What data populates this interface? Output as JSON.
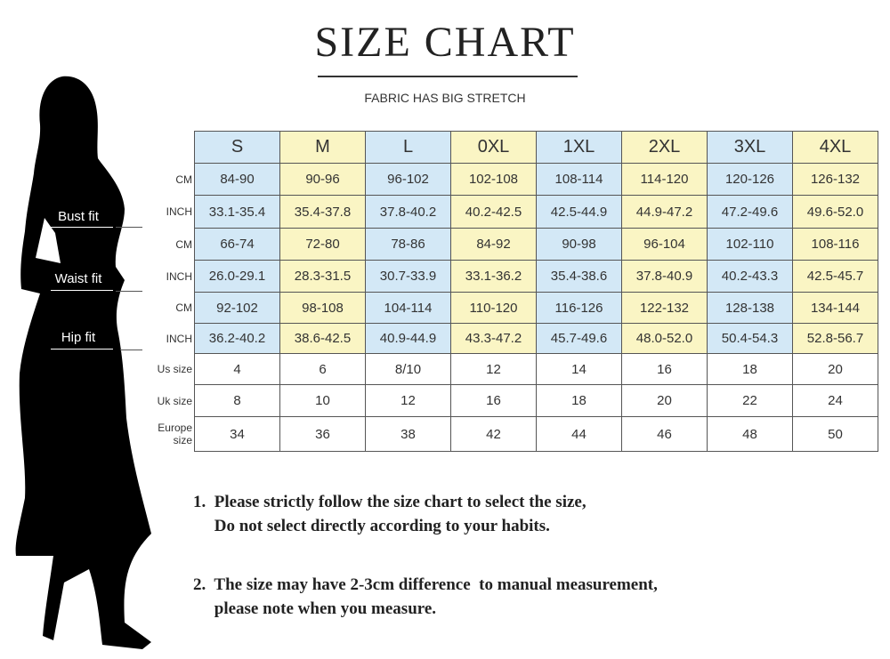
{
  "title": "SIZE CHART",
  "subtitle": "FABRIC HAS BIG STRETCH",
  "colors": {
    "blue": "#d3e8f6",
    "yellow": "#faf5c4"
  },
  "fit_labels": {
    "bust": "Bust fit",
    "waist": "Waist fit",
    "hip": "Hip fit"
  },
  "sizes": [
    "S",
    "M",
    "L",
    "0XL",
    "1XL",
    "2XL",
    "3XL",
    "4XL"
  ],
  "rows": [
    {
      "label": "CM",
      "values": [
        "84-90",
        "90-96",
        "96-102",
        "102-108",
        "108-114",
        "114-120",
        "120-126",
        "126-132"
      ]
    },
    {
      "label": "INCH",
      "values": [
        "33.1-35.4",
        "35.4-37.8",
        "37.8-40.2",
        "40.2-42.5",
        "42.5-44.9",
        "44.9-47.2",
        "47.2-49.6",
        "49.6-52.0"
      ]
    },
    {
      "label": "CM",
      "values": [
        "66-74",
        "72-80",
        "78-86",
        "84-92",
        "90-98",
        "96-104",
        "102-110",
        "108-116"
      ]
    },
    {
      "label": "INCH",
      "values": [
        "26.0-29.1",
        "28.3-31.5",
        "30.7-33.9",
        "33.1-36.2",
        "35.4-38.6",
        "37.8-40.9",
        "40.2-43.3",
        "42.5-45.7"
      ]
    },
    {
      "label": "CM",
      "values": [
        "92-102",
        "98-108",
        "104-114",
        "110-120",
        "116-126",
        "122-132",
        "128-138",
        "134-144"
      ]
    },
    {
      "label": "INCH",
      "values": [
        "36.2-40.2",
        "38.6-42.5",
        "40.9-44.9",
        "43.3-47.2",
        "45.7-49.6",
        "48.0-52.0",
        "50.4-54.3",
        "52.8-56.7"
      ]
    },
    {
      "label": "Us size",
      "values": [
        "4",
        "6",
        "8/10",
        "12",
        "14",
        "16",
        "18",
        "20"
      ]
    },
    {
      "label": "Uk size",
      "values": [
        "8",
        "10",
        "12",
        "16",
        "18",
        "20",
        "22",
        "24"
      ]
    },
    {
      "label": "Europe size",
      "values": [
        "34",
        "36",
        "38",
        "42",
        "44",
        "46",
        "48",
        "50"
      ]
    }
  ],
  "notes": [
    "1.  Please strictly follow the size chart to select the size,\n     Do not select directly according to your habits.",
    "2.  The size may have 2-3cm difference  to manual measurement,\n     please note when you measure."
  ]
}
